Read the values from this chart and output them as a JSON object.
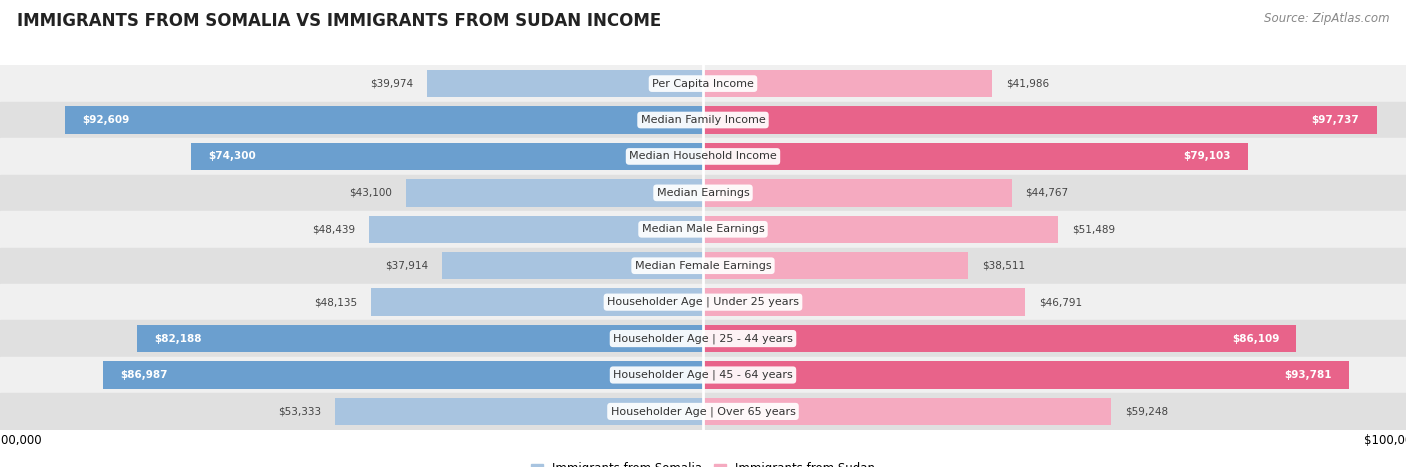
{
  "title": "IMMIGRANTS FROM SOMALIA VS IMMIGRANTS FROM SUDAN INCOME",
  "source": "Source: ZipAtlas.com",
  "categories": [
    "Per Capita Income",
    "Median Family Income",
    "Median Household Income",
    "Median Earnings",
    "Median Male Earnings",
    "Median Female Earnings",
    "Householder Age | Under 25 years",
    "Householder Age | 25 - 44 years",
    "Householder Age | 45 - 64 years",
    "Householder Age | Over 65 years"
  ],
  "somalia_values": [
    39974,
    92609,
    74300,
    43100,
    48439,
    37914,
    48135,
    82188,
    86987,
    53333
  ],
  "sudan_values": [
    41986,
    97737,
    79103,
    44767,
    51489,
    38511,
    46791,
    86109,
    93781,
    59248
  ],
  "somalia_color": "#a8c4e0",
  "somalia_color_dark": "#6b9fcf",
  "sudan_color": "#f5aac0",
  "sudan_color_dark": "#e8638a",
  "max_value": 100000,
  "row_bg_even": "#f0f0f0",
  "row_bg_odd": "#e0e0e0",
  "legend_somalia": "Immigrants from Somalia",
  "legend_sudan": "Immigrants from Sudan",
  "title_fontsize": 12,
  "source_fontsize": 8.5,
  "label_fontsize": 8,
  "value_fontsize": 7.5,
  "axis_label_fontsize": 8.5
}
